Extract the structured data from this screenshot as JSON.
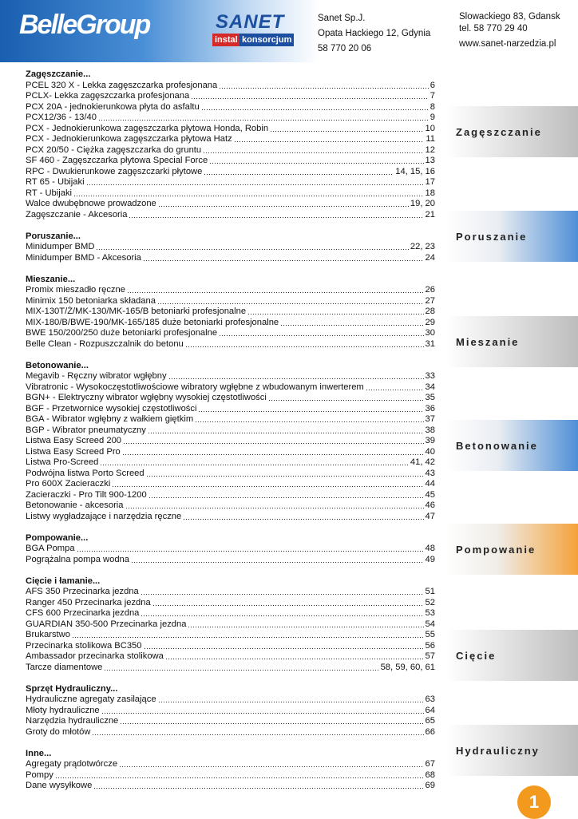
{
  "header": {
    "logo": "BelleGroup",
    "sanet_logo": "SANET",
    "sanet_sub": [
      "instal",
      "konsorcjum"
    ],
    "company": [
      "Sanet Sp.J.",
      "Opata Hackiego 12, Gdynia",
      "58 770 20 06"
    ],
    "contact": [
      "Slowackiego 83, Gdansk",
      "tel. 58 770 29 40",
      "www.sanet-narzedzia.pl"
    ]
  },
  "sections": [
    {
      "title": "Zagęszczanie...",
      "entries": [
        {
          "name": "PCEL 320 X - Lekka zagęszczarka profesjonana",
          "page": "6"
        },
        {
          "name": "PCLX- Lekka zagęszczarka profesjonana",
          "page": "7"
        },
        {
          "name": "PCX 20A - jednokierunkowa płyta do asfaltu",
          "page": "8"
        },
        {
          "name": "PCX12/36 - 13/40",
          "page": "9"
        },
        {
          "name": "PCX - Jednokierunkowa zagęszczarka płytowa Honda, Robin",
          "page": "10"
        },
        {
          "name": "PCX - Jednokierunkowa zagęszczarka płytowa Hatz",
          "page": "11"
        },
        {
          "name": "PCX 20/50 - Ciężka zagęszczarka do gruntu",
          "page": "12"
        },
        {
          "name": "SF 460 - Zagęszczarka płytowa Special Force",
          "page": "13"
        },
        {
          "name": "RPC - Dwukierunkowe zagęszczarki płytowe",
          "page": "14, 15, 16"
        },
        {
          "name": "RT 65 - Ubijaki",
          "page": "17"
        },
        {
          "name": "RT - Ubijaki",
          "page": "18"
        },
        {
          "name": "Walce dwubębnowe prowadzone",
          "page": "19, 20"
        },
        {
          "name": "Zagęszczanie - Akcesoria",
          "page": "21"
        }
      ]
    },
    {
      "title": "Poruszanie...",
      "entries": [
        {
          "name": "Minidumper BMD",
          "page": "22, 23"
        },
        {
          "name": "Minidumper BMD - Akcesoria",
          "page": "24"
        }
      ]
    },
    {
      "title": "Mieszanie...",
      "entries": [
        {
          "name": "Promix mieszadło ręczne",
          "page": "26"
        },
        {
          "name": "Minimix 150 betoniarka składana",
          "page": "27"
        },
        {
          "name": "MIX-130T/Ż/MK-130/MK-165/B betoniarki profesjonalne",
          "page": "28"
        },
        {
          "name": "MIX-180/B/BWE-190/MK-165/185 duże betoniarki profesjonalne",
          "page": "29"
        },
        {
          "name": "BWE 150/200/250 duże betoniarki profesjonalne",
          "page": "30"
        },
        {
          "name": "Belle Clean - Rozpuszczalnik do betonu",
          "page": "31"
        }
      ]
    },
    {
      "title": "Betonowanie...",
      "entries": [
        {
          "name": "Megavib - Ręczny wibrator wgłębny",
          "page": "33"
        },
        {
          "name": "Vibratronic - Wysokoczęstotliwościowe wibratory wgłębne z wbudowanym inwerterem",
          "page": "34"
        },
        {
          "name": "BGN+ - Elektryczny wibrator wgłębny wysokiej częstotliwości",
          "page": "35"
        },
        {
          "name": "BGF - Przetwornice wysokiej częstotliwości",
          "page": "36"
        },
        {
          "name": "BGA - Wibrator wgłębny z wałkiem giętkim",
          "page": "37"
        },
        {
          "name": "BGP - Wibrator pneumatyczny",
          "page": "38"
        },
        {
          "name": "Listwa Easy Screed 200",
          "page": "39"
        },
        {
          "name": "Listwa Easy Screed Pro",
          "page": "40"
        },
        {
          "name": "Listwa Pro-Screed",
          "page": "41, 42"
        },
        {
          "name": "Podwójna listwa Porto Screed",
          "page": "43"
        },
        {
          "name": "Pro 600X Zacieraczki",
          "page": "44"
        },
        {
          "name": "Zacieraczki - Pro Tilt 900-1200",
          "page": "45"
        },
        {
          "name": "Betonowanie - akcesoria",
          "page": "46"
        },
        {
          "name": "Listwy wygładzające i narzędzia ręczne",
          "page": "47"
        }
      ]
    },
    {
      "title": "Pompowanie...",
      "entries": [
        {
          "name": "BGA Pompa",
          "page": "48"
        },
        {
          "name": "Pogrążalna pompa wodna",
          "page": "49"
        }
      ]
    },
    {
      "title": "Cięcie i łamanie...",
      "entries": [
        {
          "name": "AFS 350 Przecinarka jezdna",
          "page": "51"
        },
        {
          "name": "Ranger 450 Przecinarka jezdna",
          "page": "52"
        },
        {
          "name": "CFS 600 Przecinarka jezdna",
          "page": "53"
        },
        {
          "name": "GUARDIAN 350-500 Przecinarka jezdna",
          "page": "54"
        },
        {
          "name": "Brukarstwo",
          "page": "55"
        },
        {
          "name": "Przecinarka stolikowa BC350",
          "page": "56"
        },
        {
          "name": "Ambassador przecinarka stolikowa",
          "page": "57"
        },
        {
          "name": "Tarcze diamentowe",
          "page": "58, 59, 60, 61"
        }
      ]
    },
    {
      "title": "Sprzęt Hydrauliczny...",
      "entries": [
        {
          "name": "Hydrauliczne agregaty zasilające",
          "page": "63"
        },
        {
          "name": "Młoty hydrauliczne",
          "page": "64"
        },
        {
          "name": "Narzędzia hydrauliczne",
          "page": "65"
        },
        {
          "name": "Groty do młotów",
          "page": "66"
        }
      ]
    },
    {
      "title": "Inne...",
      "entries": [
        {
          "name": "Agregaty prądotwórcze",
          "page": "67"
        },
        {
          "name": "Pompy",
          "page": "68"
        },
        {
          "name": "Dane wysyłkowe",
          "page": "69"
        }
      ]
    }
  ],
  "tabs": [
    "Zagęszczanie",
    "Poruszanie",
    "Mieszanie",
    "Betonowanie",
    "Pompowanie",
    "Cięcie",
    "Hydrauliczny"
  ],
  "page_number": "1"
}
